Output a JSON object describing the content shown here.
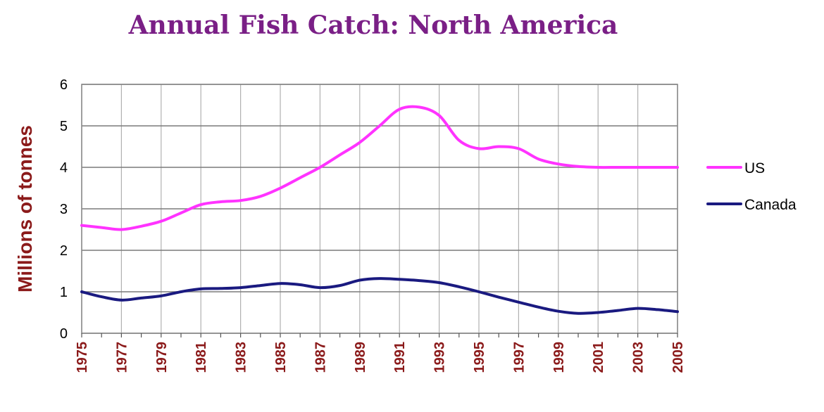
{
  "chart_data": {
    "type": "line",
    "title": "Annual Fish Catch: North America",
    "xlabel": "",
    "ylabel": "Millions of tonnes",
    "xlim": [
      1975,
      2005
    ],
    "ylim": [
      0,
      6
    ],
    "yticks": [
      "0",
      "1",
      "2",
      "3",
      "4",
      "5",
      "6"
    ],
    "xticks": [
      "1975",
      "1977",
      "1979",
      "1981",
      "1983",
      "1985",
      "1987",
      "1989",
      "1991",
      "1993",
      "1995",
      "1997",
      "1999",
      "2001",
      "2003",
      "2005"
    ],
    "grid": true,
    "legend_position": "right",
    "x": [
      1975,
      1976,
      1977,
      1978,
      1979,
      1980,
      1981,
      1982,
      1983,
      1984,
      1985,
      1986,
      1987,
      1988,
      1989,
      1990,
      1991,
      1992,
      1993,
      1994,
      1995,
      1996,
      1997,
      1998,
      1999,
      2000,
      2001,
      2002,
      2003,
      2004,
      2005
    ],
    "series": [
      {
        "name": "US",
        "color": "#ff33ff",
        "values": [
          2.6,
          2.55,
          2.5,
          2.58,
          2.7,
          2.9,
          3.1,
          3.17,
          3.2,
          3.3,
          3.5,
          3.75,
          4.0,
          4.3,
          4.6,
          5.0,
          5.4,
          5.45,
          5.25,
          4.65,
          4.45,
          4.5,
          4.45,
          4.2,
          4.08,
          4.02,
          4.0,
          4.0,
          4.0,
          4.0,
          4.0
        ]
      },
      {
        "name": "Canada",
        "color": "#1a1a80",
        "values": [
          1.0,
          0.88,
          0.8,
          0.85,
          0.9,
          1.0,
          1.07,
          1.08,
          1.1,
          1.15,
          1.2,
          1.17,
          1.1,
          1.15,
          1.28,
          1.32,
          1.3,
          1.27,
          1.22,
          1.12,
          1.0,
          0.87,
          0.75,
          0.63,
          0.53,
          0.48,
          0.5,
          0.55,
          0.6,
          0.57,
          0.52
        ]
      }
    ]
  }
}
